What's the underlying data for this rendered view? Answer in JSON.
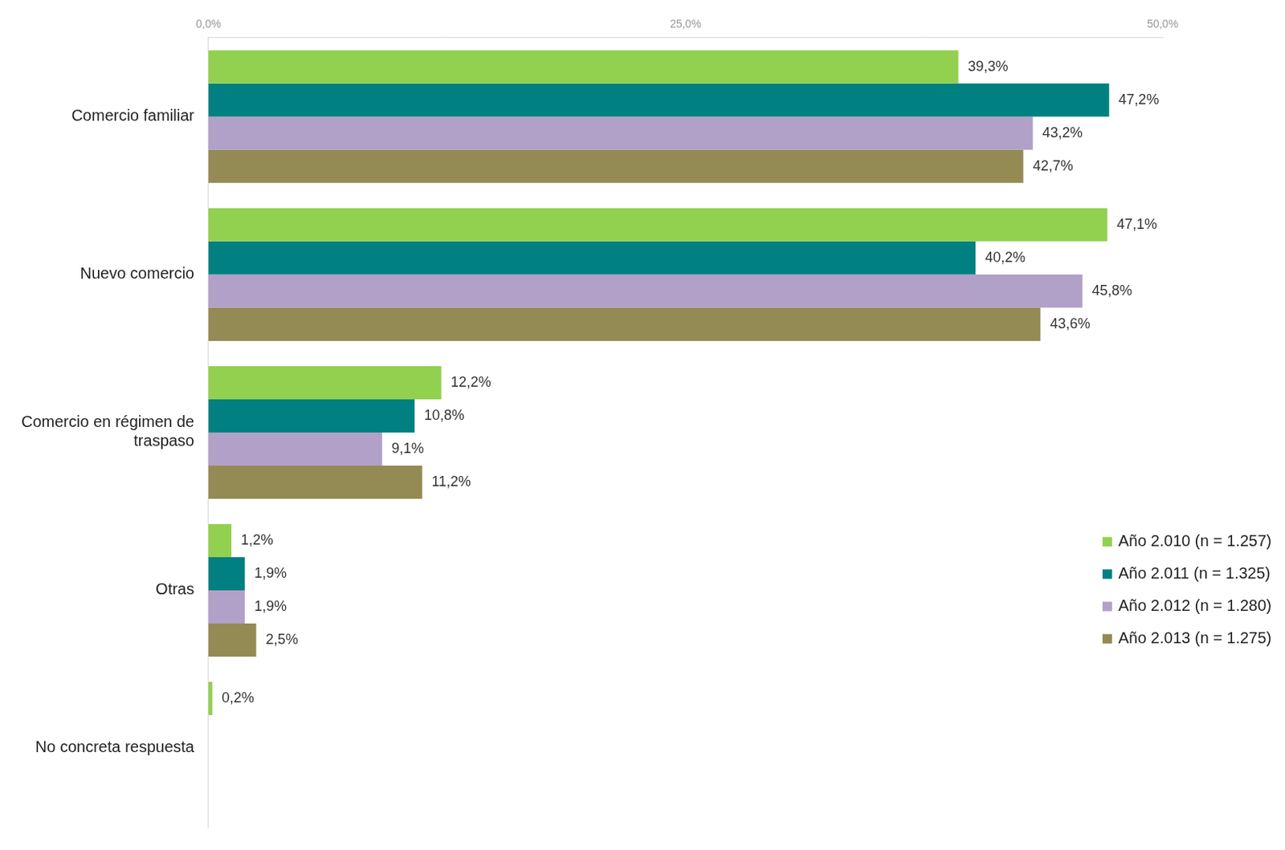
{
  "chart_data": {
    "type": "bar",
    "orientation": "horizontal",
    "categories": [
      "Comercio familiar",
      "Nuevo comercio",
      "Comercio en régimen de traspaso",
      "Otras",
      "No concreta respuesta"
    ],
    "series": [
      {
        "name": "Año 2.010 (n = 1.257)",
        "color": "#92d050",
        "values": [
          39.3,
          47.1,
          12.2,
          1.2,
          0.2
        ],
        "value_labels": [
          "39,3%",
          "47,1%",
          "12,2%",
          "1,2%",
          "0,2%"
        ]
      },
      {
        "name": "Año 2.011 (n = 1.325)",
        "color": "#008080",
        "values": [
          47.2,
          40.2,
          10.8,
          1.9,
          null
        ],
        "value_labels": [
          "47,2%",
          "40,2%",
          "10,8%",
          "1,9%",
          null
        ]
      },
      {
        "name": "Año 2.012 (n = 1.280)",
        "color": "#b1a0c7",
        "values": [
          43.2,
          45.8,
          9.1,
          1.9,
          null
        ],
        "value_labels": [
          "43,2%",
          "45,8%",
          "9,1%",
          "1,9%",
          null
        ]
      },
      {
        "name": "Año 2.013 (n = 1.275)",
        "color": "#948a54",
        "values": [
          42.7,
          43.6,
          11.2,
          2.5,
          null
        ],
        "value_labels": [
          "42,7%",
          "43,6%",
          "11,2%",
          "2,5%",
          null
        ]
      }
    ],
    "xlim": [
      0,
      50
    ],
    "xticks": [
      {
        "value": 0,
        "label": "0,0%"
      },
      {
        "value": 25,
        "label": "25,0%"
      },
      {
        "value": 50,
        "label": "50,0%"
      }
    ],
    "grid": false,
    "data_labels": true,
    "legend": "lower right"
  }
}
